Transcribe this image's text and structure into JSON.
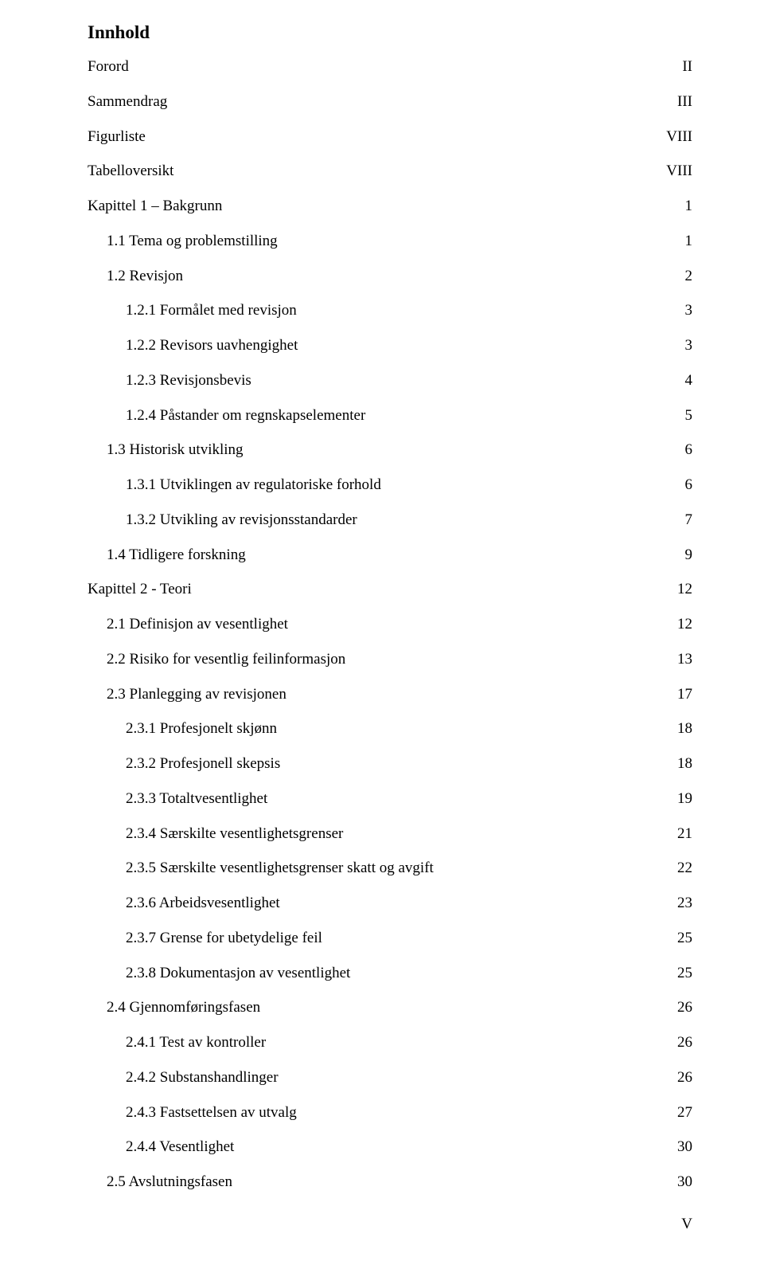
{
  "title": "Innhold",
  "page_number_label": "V",
  "entries": [
    {
      "label": "Forord",
      "page": "II",
      "indent": 0
    },
    {
      "label": "Sammendrag",
      "page": "III",
      "indent": 0
    },
    {
      "label": "Figurliste",
      "page": "VIII",
      "indent": 0
    },
    {
      "label": "Tabelloversikt",
      "page": "VIII",
      "indent": 0
    },
    {
      "label": "Kapittel 1 – Bakgrunn",
      "page": "1",
      "indent": 0
    },
    {
      "label": "1.1 Tema og problemstilling",
      "page": "1",
      "indent": 1
    },
    {
      "label": "1.2 Revisjon",
      "page": "2",
      "indent": 1
    },
    {
      "label": "1.2.1 Formålet med revisjon",
      "page": "3",
      "indent": 2
    },
    {
      "label": "1.2.2 Revisors uavhengighet",
      "page": "3",
      "indent": 2
    },
    {
      "label": "1.2.3 Revisjonsbevis",
      "page": "4",
      "indent": 2
    },
    {
      "label": "1.2.4 Påstander om regnskapselementer",
      "page": "5",
      "indent": 2
    },
    {
      "label": "1.3 Historisk utvikling",
      "page": "6",
      "indent": 1
    },
    {
      "label": "1.3.1 Utviklingen av regulatoriske forhold",
      "page": "6",
      "indent": 2
    },
    {
      "label": "1.3.2 Utvikling av revisjonsstandarder",
      "page": "7",
      "indent": 2
    },
    {
      "label": "1.4 Tidligere forskning",
      "page": "9",
      "indent": 1
    },
    {
      "label": "Kapittel 2 - Teori",
      "page": "12",
      "indent": 0
    },
    {
      "label": "2.1 Definisjon av vesentlighet",
      "page": "12",
      "indent": 1
    },
    {
      "label": "2.2 Risiko for vesentlig feilinformasjon",
      "page": "13",
      "indent": 1
    },
    {
      "label": "2.3 Planlegging av revisjonen",
      "page": "17",
      "indent": 1
    },
    {
      "label": "2.3.1 Profesjonelt skjønn",
      "page": "18",
      "indent": 2
    },
    {
      "label": "2.3.2 Profesjonell skepsis",
      "page": "18",
      "indent": 2
    },
    {
      "label": "2.3.3 Totaltvesentlighet",
      "page": "19",
      "indent": 2
    },
    {
      "label": "2.3.4 Særskilte vesentlighetsgrenser",
      "page": "21",
      "indent": 2
    },
    {
      "label": "2.3.5 Særskilte vesentlighetsgrenser skatt og avgift",
      "page": "22",
      "indent": 2
    },
    {
      "label": "2.3.6 Arbeidsvesentlighet",
      "page": "23",
      "indent": 2
    },
    {
      "label": "2.3.7 Grense for ubetydelige feil",
      "page": "25",
      "indent": 2
    },
    {
      "label": "2.3.8 Dokumentasjon av vesentlighet",
      "page": "25",
      "indent": 2
    },
    {
      "label": "2.4 Gjennomføringsfasen",
      "page": "26",
      "indent": 1
    },
    {
      "label": "2.4.1 Test av kontroller",
      "page": "26",
      "indent": 2
    },
    {
      "label": "2.4.2 Substanshandlinger",
      "page": "26",
      "indent": 2
    },
    {
      "label": "2.4.3 Fastsettelsen av utvalg",
      "page": "27",
      "indent": 2
    },
    {
      "label": "2.4.4 Vesentlighet",
      "page": "30",
      "indent": 2
    },
    {
      "label": "2.5 Avslutningsfasen",
      "page": "30",
      "indent": 1
    }
  ]
}
